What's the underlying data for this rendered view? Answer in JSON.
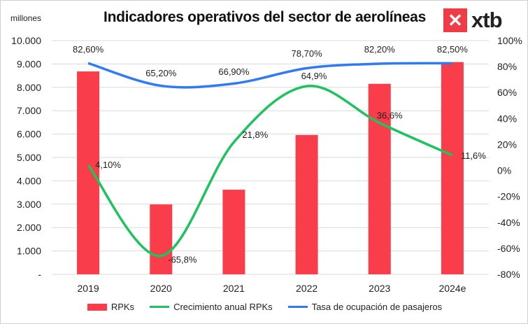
{
  "chart_data": {
    "type": "bar+line",
    "title": "Indicadores operativos del sector de aerolíneas",
    "left_axis_unit": "millones",
    "categories": [
      "2019",
      "2020",
      "2021",
      "2022",
      "2023",
      "2024e"
    ],
    "left_axis": {
      "range": [
        0,
        10000
      ],
      "ticks": [
        "-",
        "1.000",
        "2.000",
        "3.000",
        "4.000",
        "5.000",
        "6.000",
        "7.000",
        "8.000",
        "9.000",
        "10.000"
      ]
    },
    "right_axis": {
      "range": [
        -80,
        100
      ],
      "ticks": [
        "-80%",
        "-60%",
        "-40%",
        "-20%",
        "0%",
        "20%",
        "40%",
        "60%",
        "80%",
        "100%"
      ]
    },
    "grid": true,
    "legend_position": "bottom",
    "series": [
      {
        "name": "RPKs",
        "type": "bar",
        "axis": "left",
        "color": "#f93d4a",
        "values": [
          8680,
          2990,
          3620,
          5960,
          8150,
          9080
        ]
      },
      {
        "name": "Crecimiento anual RPKs",
        "type": "line",
        "axis": "right",
        "color": "#1ec25e",
        "values": [
          4.1,
          -65.8,
          21.8,
          64.9,
          36.6,
          11.6
        ],
        "labels": [
          "4,10%",
          "-65,8%",
          "21,8%",
          "64,9%",
          "36,6%",
          "11,6%"
        ]
      },
      {
        "name": "Tasa de ocupación de pasajeros",
        "type": "line",
        "axis": "right",
        "color": "#2f7bf5",
        "values": [
          82.6,
          65.2,
          66.9,
          78.7,
          82.2,
          82.5
        ],
        "labels": [
          "82,60%",
          "65,20%",
          "66,90%",
          "78,70%",
          "82,20%",
          "82,50%"
        ]
      }
    ]
  },
  "logo": {
    "text": "xtb"
  }
}
